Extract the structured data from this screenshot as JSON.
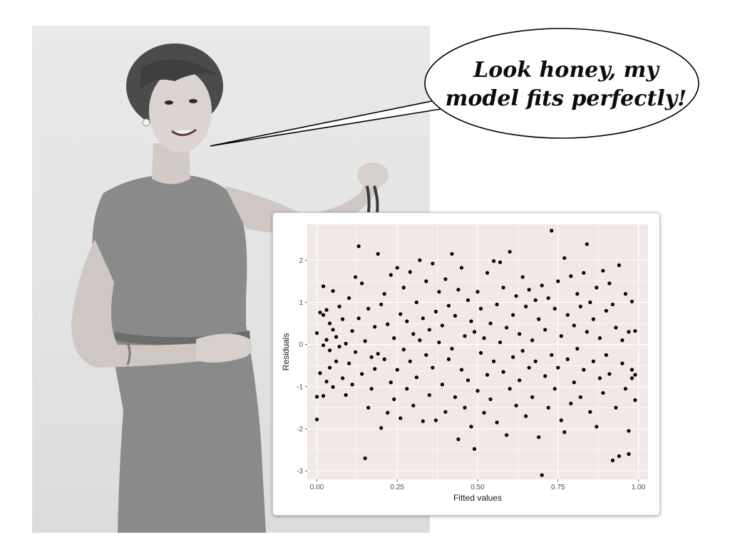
{
  "speech_bubble": {
    "line1": "Look honey, my",
    "line2": "model fits perfectly!"
  },
  "colors": {
    "panel_background": "#F2E8E8",
    "grid_line": "#FFFFFF",
    "point": "#000000"
  },
  "chart_data": {
    "type": "scatter",
    "title": "",
    "xlabel": "Fitted values",
    "ylabel": "Residuals",
    "xlim": [
      -0.03,
      1.03
    ],
    "ylim": [
      -3.2,
      2.85
    ],
    "x_ticks": [
      0.0,
      0.25,
      0.5,
      0.75,
      1.0
    ],
    "x_tick_labels": [
      "0.00",
      "0.25",
      "0.50",
      "0.75",
      "1.00"
    ],
    "y_ticks": [
      -3,
      -2,
      -1,
      0,
      1,
      2
    ],
    "y_tick_labels": [
      "-3",
      "-2",
      "-1",
      "0",
      "1",
      "2"
    ],
    "grid": true,
    "legend": false,
    "points": [
      {
        "x": 0.0,
        "y": -1.78
      },
      {
        "x": 0.0,
        "y": 0.27
      },
      {
        "x": 0.0,
        "y": -1.24
      },
      {
        "x": 0.01,
        "y": 0.76
      },
      {
        "x": 0.01,
        "y": -0.68
      },
      {
        "x": 0.02,
        "y": 1.38
      },
      {
        "x": 0.02,
        "y": 0.7
      },
      {
        "x": 0.02,
        "y": -0.02
      },
      {
        "x": 0.02,
        "y": -1.22
      },
      {
        "x": 0.03,
        "y": 0.82
      },
      {
        "x": 0.03,
        "y": 0.11
      },
      {
        "x": 0.03,
        "y": -0.88
      },
      {
        "x": 0.04,
        "y": 0.5
      },
      {
        "x": 0.04,
        "y": -0.14
      },
      {
        "x": 0.04,
        "y": -0.55
      },
      {
        "x": 0.05,
        "y": 1.27
      },
      {
        "x": 0.05,
        "y": 0.35
      },
      {
        "x": 0.05,
        "y": -1.01
      },
      {
        "x": 0.06,
        "y": 0.18
      },
      {
        "x": 0.06,
        "y": -0.4
      },
      {
        "x": 0.07,
        "y": 0.9
      },
      {
        "x": 0.07,
        "y": -0.05
      },
      {
        "x": 0.08,
        "y": -0.8
      },
      {
        "x": 0.08,
        "y": 0.6
      },
      {
        "x": 0.09,
        "y": -1.2
      },
      {
        "x": 0.09,
        "y": 0.02
      },
      {
        "x": 0.1,
        "y": 1.1
      },
      {
        "x": 0.1,
        "y": -0.45
      },
      {
        "x": 0.11,
        "y": 0.32
      },
      {
        "x": 0.11,
        "y": -0.95
      },
      {
        "x": 0.12,
        "y": 1.6
      },
      {
        "x": 0.12,
        "y": -0.18
      },
      {
        "x": 0.13,
        "y": 2.33
      },
      {
        "x": 0.13,
        "y": 0.62
      },
      {
        "x": 0.14,
        "y": -0.7
      },
      {
        "x": 0.14,
        "y": 1.45
      },
      {
        "x": 0.15,
        "y": -2.7
      },
      {
        "x": 0.15,
        "y": 0.08
      },
      {
        "x": 0.16,
        "y": -1.5
      },
      {
        "x": 0.16,
        "y": 0.85
      },
      {
        "x": 0.17,
        "y": -0.3
      },
      {
        "x": 0.17,
        "y": -1.05
      },
      {
        "x": 0.18,
        "y": 0.42
      },
      {
        "x": 0.18,
        "y": -0.58
      },
      {
        "x": 0.19,
        "y": 2.15
      },
      {
        "x": 0.19,
        "y": -0.22
      },
      {
        "x": 0.2,
        "y": -1.98
      },
      {
        "x": 0.2,
        "y": 0.95
      },
      {
        "x": 0.21,
        "y": -0.35
      },
      {
        "x": 0.21,
        "y": 1.2
      },
      {
        "x": 0.22,
        "y": -1.62
      },
      {
        "x": 0.22,
        "y": 0.48
      },
      {
        "x": 0.23,
        "y": -0.9
      },
      {
        "x": 0.23,
        "y": 1.65
      },
      {
        "x": 0.24,
        "y": 0.15
      },
      {
        "x": 0.24,
        "y": -1.3
      },
      {
        "x": 0.25,
        "y": 1.82
      },
      {
        "x": 0.25,
        "y": -0.6
      },
      {
        "x": 0.26,
        "y": 0.72
      },
      {
        "x": 0.26,
        "y": -1.75
      },
      {
        "x": 0.27,
        "y": 1.35
      },
      {
        "x": 0.27,
        "y": -0.12
      },
      {
        "x": 0.28,
        "y": 0.55
      },
      {
        "x": 0.28,
        "y": -1.05
      },
      {
        "x": 0.29,
        "y": 1.72
      },
      {
        "x": 0.29,
        "y": -0.4
      },
      {
        "x": 0.3,
        "y": 0.25
      },
      {
        "x": 0.3,
        "y": -1.45
      },
      {
        "x": 0.31,
        "y": 1.0
      },
      {
        "x": 0.31,
        "y": -0.78
      },
      {
        "x": 0.32,
        "y": 2.0
      },
      {
        "x": 0.32,
        "y": 0.1
      },
      {
        "x": 0.33,
        "y": -1.82
      },
      {
        "x": 0.33,
        "y": 0.62
      },
      {
        "x": 0.34,
        "y": -0.25
      },
      {
        "x": 0.34,
        "y": 1.5
      },
      {
        "x": 0.35,
        "y": -1.2
      },
      {
        "x": 0.35,
        "y": 0.35
      },
      {
        "x": 0.36,
        "y": 1.92
      },
      {
        "x": 0.36,
        "y": -0.55
      },
      {
        "x": 0.37,
        "y": 0.78
      },
      {
        "x": 0.37,
        "y": -1.8
      },
      {
        "x": 0.38,
        "y": 0.05
      },
      {
        "x": 0.38,
        "y": 1.25
      },
      {
        "x": 0.39,
        "y": -0.95
      },
      {
        "x": 0.39,
        "y": 0.45
      },
      {
        "x": 0.4,
        "y": -1.6
      },
      {
        "x": 0.4,
        "y": 1.55
      },
      {
        "x": 0.41,
        "y": -0.35
      },
      {
        "x": 0.41,
        "y": 0.92
      },
      {
        "x": 0.42,
        "y": 2.15
      },
      {
        "x": 0.42,
        "y": -0.1
      },
      {
        "x": 0.43,
        "y": -1.25
      },
      {
        "x": 0.43,
        "y": 0.68
      },
      {
        "x": 0.44,
        "y": -2.25
      },
      {
        "x": 0.44,
        "y": 1.3
      },
      {
        "x": 0.45,
        "y": -0.6
      },
      {
        "x": 0.45,
        "y": 1.82
      },
      {
        "x": 0.46,
        "y": 0.2
      },
      {
        "x": 0.46,
        "y": -1.5
      },
      {
        "x": 0.47,
        "y": 1.05
      },
      {
        "x": 0.47,
        "y": -0.85
      },
      {
        "x": 0.48,
        "y": 0.55
      },
      {
        "x": 0.48,
        "y": -1.95
      },
      {
        "x": 0.49,
        "y": -2.48
      },
      {
        "x": 0.49,
        "y": 0.3
      },
      {
        "x": 0.5,
        "y": -1.1
      },
      {
        "x": 0.5,
        "y": 1.25
      },
      {
        "x": 0.51,
        "y": -0.2
      },
      {
        "x": 0.51,
        "y": 0.85
      },
      {
        "x": 0.52,
        "y": -1.62
      },
      {
        "x": 0.52,
        "y": 0.15
      },
      {
        "x": 0.53,
        "y": 1.7
      },
      {
        "x": 0.53,
        "y": -0.72
      },
      {
        "x": 0.54,
        "y": 0.5
      },
      {
        "x": 0.54,
        "y": -1.3
      },
      {
        "x": 0.55,
        "y": 1.98
      },
      {
        "x": 0.55,
        "y": -0.4
      },
      {
        "x": 0.56,
        "y": 0.95
      },
      {
        "x": 0.56,
        "y": -1.85
      },
      {
        "x": 0.57,
        "y": 1.95
      },
      {
        "x": 0.57,
        "y": 0.05
      },
      {
        "x": 0.58,
        "y": -0.65
      },
      {
        "x": 0.58,
        "y": 1.35
      },
      {
        "x": 0.59,
        "y": -2.15
      },
      {
        "x": 0.59,
        "y": 0.4
      },
      {
        "x": 0.6,
        "y": 2.2
      },
      {
        "x": 0.6,
        "y": -1.05
      },
      {
        "x": 0.61,
        "y": 0.7
      },
      {
        "x": 0.61,
        "y": -0.3
      },
      {
        "x": 0.62,
        "y": 1.15
      },
      {
        "x": 0.62,
        "y": -1.45
      },
      {
        "x": 0.63,
        "y": 0.25
      },
      {
        "x": 0.63,
        "y": -0.85
      },
      {
        "x": 0.64,
        "y": 1.6
      },
      {
        "x": 0.64,
        "y": -0.15
      },
      {
        "x": 0.65,
        "y": -1.7
      },
      {
        "x": 0.65,
        "y": 0.9
      },
      {
        "x": 0.66,
        "y": -0.55
      },
      {
        "x": 0.66,
        "y": 1.3
      },
      {
        "x": 0.67,
        "y": 0.1
      },
      {
        "x": 0.67,
        "y": -1.25
      },
      {
        "x": 0.68,
        "y": 1.05
      },
      {
        "x": 0.68,
        "y": -0.4
      },
      {
        "x": 0.69,
        "y": -2.2
      },
      {
        "x": 0.69,
        "y": 0.6
      },
      {
        "x": 0.7,
        "y": -3.1
      },
      {
        "x": 0.7,
        "y": 1.4
      },
      {
        "x": 0.71,
        "y": -0.75
      },
      {
        "x": 0.71,
        "y": 0.35
      },
      {
        "x": 0.72,
        "y": -1.5
      },
      {
        "x": 0.72,
        "y": 1.1
      },
      {
        "x": 0.73,
        "y": 2.7
      },
      {
        "x": 0.73,
        "y": -0.25
      },
      {
        "x": 0.74,
        "y": 0.85
      },
      {
        "x": 0.74,
        "y": -1.05
      },
      {
        "x": 0.75,
        "y": 1.5
      },
      {
        "x": 0.75,
        "y": -0.55
      },
      {
        "x": 0.76,
        "y": 0.2
      },
      {
        "x": 0.76,
        "y": -1.8
      },
      {
        "x": 0.77,
        "y": 2.05
      },
      {
        "x": 0.77,
        "y": -2.08
      },
      {
        "x": 0.78,
        "y": 0.7
      },
      {
        "x": 0.78,
        "y": -0.35
      },
      {
        "x": 0.79,
        "y": 1.62
      },
      {
        "x": 0.79,
        "y": -1.4
      },
      {
        "x": 0.8,
        "y": 0.45
      },
      {
        "x": 0.8,
        "y": -0.9
      },
      {
        "x": 0.81,
        "y": 1.2
      },
      {
        "x": 0.81,
        "y": -0.1
      },
      {
        "x": 0.82,
        "y": -1.25
      },
      {
        "x": 0.82,
        "y": 0.9
      },
      {
        "x": 0.83,
        "y": 1.7
      },
      {
        "x": 0.83,
        "y": -0.6
      },
      {
        "x": 0.84,
        "y": 2.38
      },
      {
        "x": 0.84,
        "y": 0.3
      },
      {
        "x": 0.85,
        "y": -1.6
      },
      {
        "x": 0.85,
        "y": 1.0
      },
      {
        "x": 0.86,
        "y": -0.4
      },
      {
        "x": 0.86,
        "y": 0.6
      },
      {
        "x": 0.87,
        "y": -1.95
      },
      {
        "x": 0.87,
        "y": 1.35
      },
      {
        "x": 0.88,
        "y": 0.15
      },
      {
        "x": 0.88,
        "y": -0.8
      },
      {
        "x": 0.89,
        "y": 1.75
      },
      {
        "x": 0.89,
        "y": -1.15
      },
      {
        "x": 0.9,
        "y": 0.8
      },
      {
        "x": 0.9,
        "y": -0.25
      },
      {
        "x": 0.91,
        "y": 1.45
      },
      {
        "x": 0.91,
        "y": -0.7
      },
      {
        "x": 0.92,
        "y": -2.75
      },
      {
        "x": 0.92,
        "y": 0.95
      },
      {
        "x": 0.93,
        "y": 0.4
      },
      {
        "x": 0.93,
        "y": -1.5
      },
      {
        "x": 0.94,
        "y": 1.88
      },
      {
        "x": 0.94,
        "y": -2.65
      },
      {
        "x": 0.95,
        "y": 0.1
      },
      {
        "x": 0.95,
        "y": -0.45
      },
      {
        "x": 0.96,
        "y": 1.2
      },
      {
        "x": 0.96,
        "y": -1.05
      },
      {
        "x": 0.97,
        "y": -2.6
      },
      {
        "x": 0.97,
        "y": -2.05
      },
      {
        "x": 0.97,
        "y": 0.3
      },
      {
        "x": 0.98,
        "y": 1.02
      },
      {
        "x": 0.98,
        "y": -0.6
      },
      {
        "x": 0.98,
        "y": -0.8
      },
      {
        "x": 0.99,
        "y": 0.32
      },
      {
        "x": 0.99,
        "y": -0.72
      },
      {
        "x": 0.99,
        "y": -1.32
      }
    ]
  }
}
